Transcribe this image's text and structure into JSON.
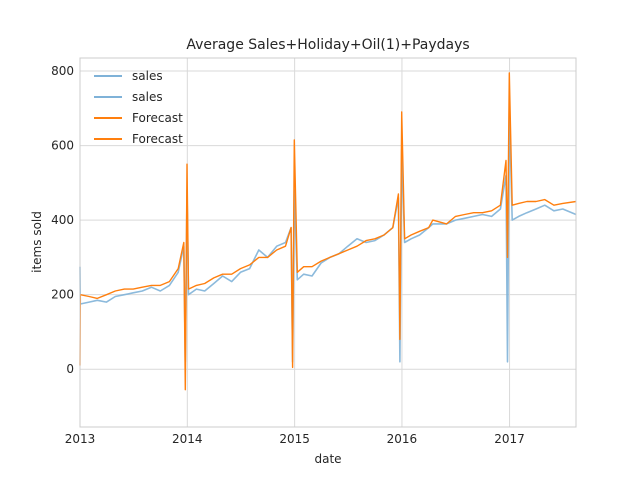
{
  "colors": {
    "sales": "#7fb2d8",
    "forecast": "#ff7f0e",
    "grid": "#d9d9d9",
    "axis_frame": "#cccccc",
    "text": "#262626",
    "background": "#ffffff"
  },
  "chart_data": {
    "type": "line",
    "title": "Average Sales+Holiday+Oil(1)+Paydays",
    "xlabel": "date",
    "ylabel": "items sold",
    "xlim": [
      "2013-01-01",
      "2017-08-15"
    ],
    "ylim": [
      -155,
      835
    ],
    "x_ticks": [
      "2013-01-01",
      "2014-01-01",
      "2015-01-01",
      "2016-01-01",
      "2017-01-01"
    ],
    "x_tick_labels": [
      "2013",
      "2014",
      "2015",
      "2016",
      "2017"
    ],
    "y_ticks": [
      0,
      200,
      400,
      600,
      800
    ],
    "y_tick_labels": [
      "0",
      "200",
      "400",
      "600",
      "800"
    ],
    "grid": true,
    "legend_position": "top-left",
    "legend": [
      "sales",
      "sales",
      "Forecast",
      "Forecast"
    ],
    "series": [
      {
        "name": "sales",
        "color": "#7fb2d8",
        "x": [
          "2013-01-01",
          "2013-01-02",
          "2013-02-01",
          "2013-03-01",
          "2013-04-01",
          "2013-05-01",
          "2013-06-01",
          "2013-07-01",
          "2013-08-01",
          "2013-09-01",
          "2013-10-01",
          "2013-11-01",
          "2013-12-01",
          "2013-12-20",
          "2013-12-25",
          "2013-12-31",
          "2014-01-05",
          "2014-02-01",
          "2014-03-01",
          "2014-04-01",
          "2014-05-01",
          "2014-06-01",
          "2014-07-01",
          "2014-08-01",
          "2014-09-01",
          "2014-10-01",
          "2014-11-01",
          "2014-12-01",
          "2014-12-20",
          "2014-12-25",
          "2014-12-31",
          "2015-01-10",
          "2015-02-01",
          "2015-03-01",
          "2015-04-01",
          "2015-05-01",
          "2015-06-01",
          "2015-07-01",
          "2015-08-01",
          "2015-09-01",
          "2015-10-01",
          "2015-11-01",
          "2015-12-01",
          "2015-12-20",
          "2015-12-25",
          "2015-12-31",
          "2016-01-10",
          "2016-02-01",
          "2016-03-01",
          "2016-04-01",
          "2016-04-15",
          "2016-06-01",
          "2016-07-01",
          "2016-08-01",
          "2016-09-01",
          "2016-10-01",
          "2016-11-01",
          "2016-12-01",
          "2016-12-20",
          "2016-12-25",
          "2016-12-31",
          "2017-01-10",
          "2017-02-01",
          "2017-03-01",
          "2017-04-01",
          "2017-05-01",
          "2017-06-01",
          "2017-07-01",
          "2017-08-15"
        ],
        "y": [
          275,
          175,
          180,
          185,
          180,
          195,
          200,
          205,
          210,
          220,
          210,
          225,
          260,
          330,
          20,
          480,
          200,
          215,
          210,
          230,
          250,
          235,
          260,
          270,
          320,
          300,
          330,
          340,
          380,
          20,
          480,
          240,
          255,
          250,
          285,
          300,
          310,
          330,
          350,
          340,
          345,
          360,
          380,
          460,
          20,
          590,
          340,
          350,
          360,
          380,
          390,
          390,
          400,
          405,
          410,
          415,
          410,
          430,
          520,
          20,
          700,
          400,
          410,
          420,
          430,
          440,
          425,
          430,
          415
        ]
      },
      {
        "name": "Forecast",
        "color": "#ff7f0e",
        "x": [
          "2013-01-01",
          "2013-01-02",
          "2013-02-01",
          "2013-03-01",
          "2013-04-01",
          "2013-05-01",
          "2013-06-01",
          "2013-07-01",
          "2013-08-01",
          "2013-09-01",
          "2013-10-01",
          "2013-11-01",
          "2013-12-01",
          "2013-12-20",
          "2013-12-25",
          "2013-12-31",
          "2014-01-05",
          "2014-02-01",
          "2014-03-01",
          "2014-04-01",
          "2014-05-01",
          "2014-06-01",
          "2014-07-01",
          "2014-08-01",
          "2014-09-01",
          "2014-10-01",
          "2014-11-01",
          "2014-12-01",
          "2014-12-20",
          "2014-12-25",
          "2014-12-31",
          "2015-01-10",
          "2015-02-01",
          "2015-03-01",
          "2015-04-01",
          "2015-05-01",
          "2015-06-01",
          "2015-07-01",
          "2015-08-01",
          "2015-09-01",
          "2015-10-01",
          "2015-11-01",
          "2015-12-01",
          "2015-12-20",
          "2015-12-25",
          "2015-12-31",
          "2016-01-10",
          "2016-02-01",
          "2016-03-01",
          "2016-04-01",
          "2016-04-15",
          "2016-06-01",
          "2016-07-01",
          "2016-08-01",
          "2016-09-01",
          "2016-10-01",
          "2016-11-01",
          "2016-12-01",
          "2016-12-20",
          "2016-12-25",
          "2016-12-31",
          "2017-01-10",
          "2017-02-01",
          "2017-03-01",
          "2017-04-01",
          "2017-05-01",
          "2017-06-01",
          "2017-07-01",
          "2017-08-15"
        ],
        "y": [
          10,
          200,
          195,
          190,
          200,
          210,
          215,
          215,
          220,
          225,
          225,
          235,
          270,
          340,
          -55,
          550,
          215,
          225,
          230,
          245,
          255,
          255,
          270,
          280,
          300,
          300,
          320,
          330,
          380,
          5,
          615,
          260,
          275,
          275,
          290,
          300,
          310,
          320,
          330,
          345,
          350,
          360,
          380,
          470,
          80,
          690,
          350,
          360,
          370,
          380,
          400,
          390,
          410,
          415,
          420,
          420,
          425,
          440,
          560,
          300,
          795,
          440,
          445,
          450,
          450,
          455,
          440,
          445,
          450
        ]
      }
    ]
  }
}
